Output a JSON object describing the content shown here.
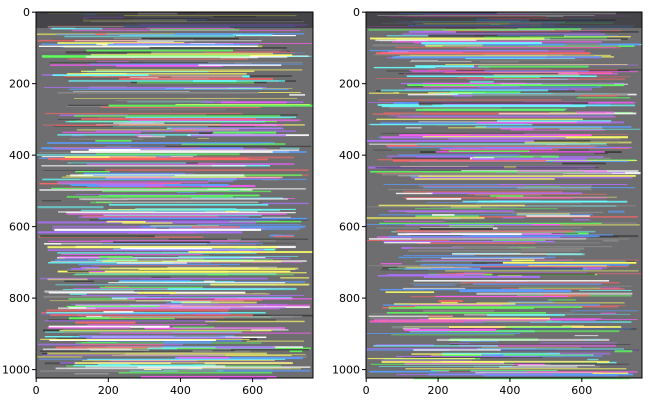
{
  "chart_data": [
    {
      "type": "image",
      "xlim": [
        -0.5,
        767.5
      ],
      "ylim": [
        1023.5,
        -0.5
      ],
      "xticks": [
        0,
        200,
        400,
        600
      ],
      "yticks": [
        0,
        200,
        400,
        600,
        800,
        1000
      ]
    },
    {
      "type": "image",
      "xlim": [
        -0.5,
        767.5
      ],
      "ylim": [
        1023.5,
        -0.5
      ],
      "xticks": [
        0,
        200,
        400,
        600
      ],
      "yticks": [
        0,
        200,
        400,
        600,
        800,
        1000
      ]
    }
  ]
}
